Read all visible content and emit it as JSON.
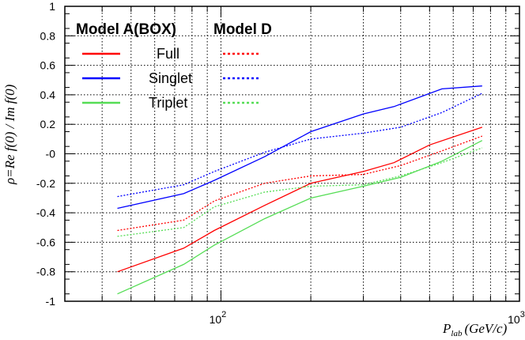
{
  "chart_data": {
    "type": "line",
    "title": "",
    "xlabel": "P",
    "xlabel_sub": "lab",
    "xlabel_units": "(GeV/c)",
    "ylabel": "ρ=Re f(0) / Im f(0)",
    "x_scale": "log",
    "xlim": [
      30,
      1000
    ],
    "ylim": [
      -1,
      1
    ],
    "y_ticks": [
      {
        "v": -1.0,
        "label": "-1"
      },
      {
        "v": -0.8,
        "label": "-0.8"
      },
      {
        "v": -0.6,
        "label": "-0.6"
      },
      {
        "v": -0.4,
        "label": "-0.4"
      },
      {
        "v": -0.2,
        "label": "-0.2"
      },
      {
        "v": 0.0,
        "label": "-0"
      },
      {
        "v": 0.2,
        "label": "0.2"
      },
      {
        "v": 0.4,
        "label": "0.4"
      },
      {
        "v": 0.6,
        "label": "0.6"
      },
      {
        "v": 0.8,
        "label": "0.8"
      },
      {
        "v": 1.0,
        "label": "1"
      }
    ],
    "x_major_ticks": [
      {
        "v": 100,
        "base": "10",
        "exp": "2"
      },
      {
        "v": 1000,
        "base": "10",
        "exp": "3"
      }
    ],
    "x_minor_ticks": [
      30,
      40,
      50,
      60,
      70,
      80,
      90,
      200,
      300,
      400,
      500,
      600,
      700,
      800,
      900
    ],
    "grid": true,
    "legend_placement": "top-left",
    "legend": {
      "col_a_header": "Model A(BOX)",
      "col_d_header": "Model D",
      "rows": [
        {
          "label": "Full",
          "color": "#ff0000"
        },
        {
          "label": "Singlet",
          "color": "#0000ff"
        },
        {
          "label": "Triplet",
          "color": "#55dd55"
        }
      ]
    },
    "series": [
      {
        "model": "Model A(BOX)",
        "row": "Full",
        "color": "#ff0000",
        "style": "solid",
        "x": [
          45,
          75,
          95,
          140,
          200,
          300,
          380,
          500,
          750
        ],
        "y": [
          -0.8,
          -0.64,
          -0.52,
          -0.35,
          -0.2,
          -0.12,
          -0.06,
          0.06,
          0.18
        ]
      },
      {
        "model": "Model A(BOX)",
        "row": "Singlet",
        "color": "#0000ff",
        "style": "solid",
        "x": [
          45,
          75,
          95,
          140,
          200,
          300,
          380,
          550,
          750
        ],
        "y": [
          -0.37,
          -0.27,
          -0.18,
          -0.02,
          0.15,
          0.27,
          0.32,
          0.44,
          0.46
        ]
      },
      {
        "model": "Model A(BOX)",
        "row": "Triplet",
        "color": "#55dd55",
        "style": "solid",
        "x": [
          45,
          75,
          95,
          140,
          200,
          300,
          400,
          550,
          750
        ],
        "y": [
          -0.95,
          -0.75,
          -0.62,
          -0.44,
          -0.3,
          -0.22,
          -0.16,
          -0.05,
          0.09
        ]
      },
      {
        "model": "Model D",
        "row": "Full",
        "color": "#ff0000",
        "style": "dotted",
        "x": [
          45,
          75,
          95,
          140,
          200,
          300,
          400,
          550,
          750
        ],
        "y": [
          -0.52,
          -0.45,
          -0.32,
          -0.2,
          -0.15,
          -0.14,
          -0.08,
          0.02,
          0.12
        ]
      },
      {
        "model": "Model D",
        "row": "Singlet",
        "color": "#0000ff",
        "style": "dotted",
        "x": [
          45,
          75,
          95,
          140,
          200,
          300,
          400,
          550,
          750
        ],
        "y": [
          -0.29,
          -0.21,
          -0.12,
          0.01,
          0.1,
          0.14,
          0.18,
          0.28,
          0.41
        ]
      },
      {
        "model": "Model D",
        "row": "Triplet",
        "color": "#55dd55",
        "style": "dotted",
        "x": [
          45,
          75,
          95,
          140,
          200,
          300,
          400,
          550,
          750
        ],
        "y": [
          -0.56,
          -0.5,
          -0.36,
          -0.26,
          -0.22,
          -0.21,
          -0.15,
          -0.06,
          0.04
        ]
      }
    ]
  }
}
